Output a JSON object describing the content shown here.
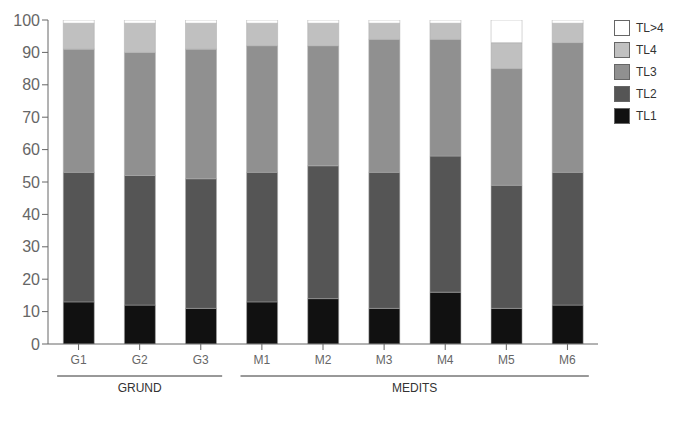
{
  "chart_data": {
    "type": "bar",
    "stacked": true,
    "categories": [
      "G1",
      "G2",
      "G3",
      "M1",
      "M2",
      "M3",
      "M4",
      "M5",
      "M6"
    ],
    "series": [
      {
        "name": "TL1",
        "color": "#111111",
        "values": [
          13,
          12,
          11,
          13,
          14,
          11,
          16,
          11,
          12
        ]
      },
      {
        "name": "TL2",
        "color": "#555555",
        "values": [
          40,
          40,
          40,
          40,
          41,
          42,
          42,
          38,
          41
        ]
      },
      {
        "name": "TL3",
        "color": "#909090",
        "values": [
          38,
          38,
          40,
          39,
          37,
          41,
          36,
          36,
          40
        ]
      },
      {
        "name": "TL4",
        "color": "#c0c0c0",
        "values": [
          8,
          9,
          8,
          7,
          7,
          5,
          5,
          8,
          6
        ]
      },
      {
        "name": "TL>4",
        "color": "#ffffff",
        "values": [
          1,
          1,
          1,
          1,
          1,
          1,
          1,
          7,
          1
        ]
      }
    ],
    "ylim": [
      0,
      100
    ],
    "yticks": [
      0,
      10,
      20,
      30,
      40,
      50,
      60,
      70,
      80,
      90,
      100
    ],
    "grid": false,
    "legend": "right",
    "annotations": [
      {
        "text": "GRUND",
        "categories": [
          "G1",
          "G2",
          "G3"
        ]
      },
      {
        "text": "MEDITS",
        "categories": [
          "M1",
          "M2",
          "M3",
          "M4",
          "M5",
          "M6"
        ]
      }
    ]
  }
}
